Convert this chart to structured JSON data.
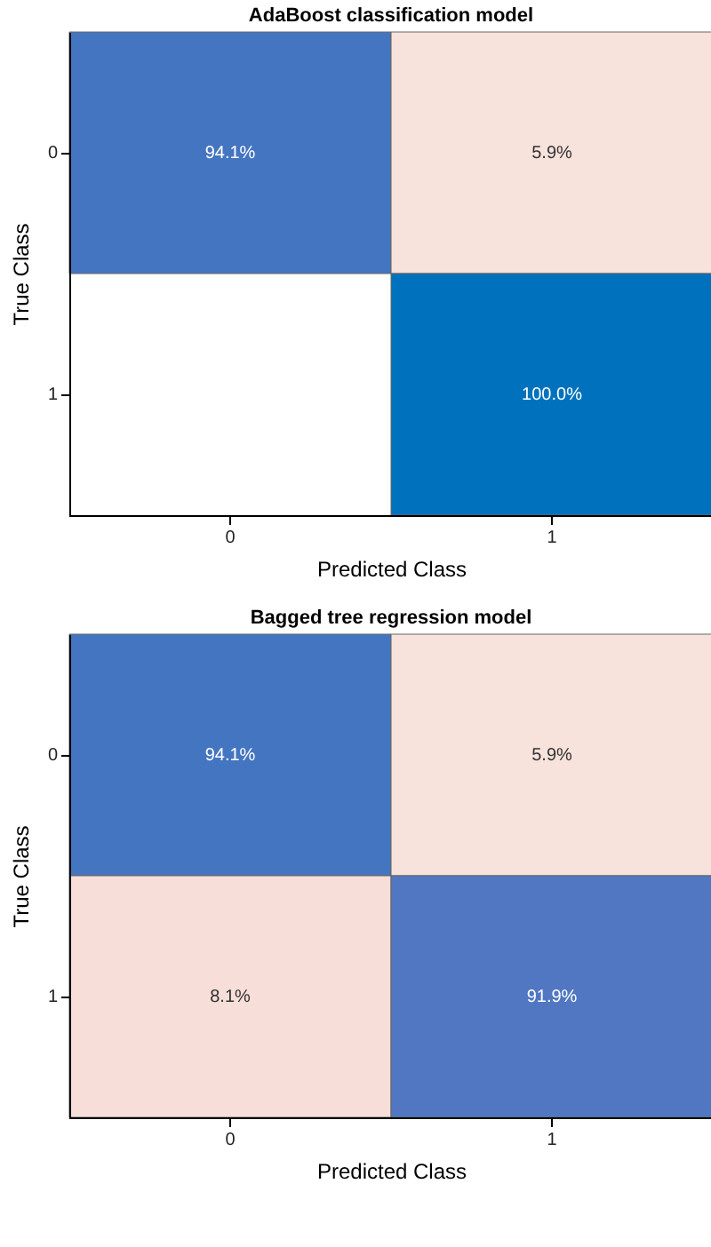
{
  "chart_data": [
    {
      "type": "heatmap",
      "title": "AdaBoost classification model",
      "xlabel": "Predicted Class",
      "ylabel": "True Class",
      "categories": [
        "0",
        "1"
      ],
      "y_categories": [
        "0",
        "1"
      ],
      "cells": [
        [
          94.1,
          5.9
        ],
        [
          null,
          100.0
        ]
      ],
      "cell_labels": [
        [
          "94.1%",
          "5.9%"
        ],
        [
          null,
          "100.0%"
        ]
      ]
    },
    {
      "type": "heatmap",
      "title": "Bagged tree regression model",
      "xlabel": "Predicted Class",
      "ylabel": "True Class",
      "categories": [
        "0",
        "1"
      ],
      "y_categories": [
        "0",
        "1"
      ],
      "cells": [
        [
          94.1,
          5.9
        ],
        [
          8.1,
          91.9
        ]
      ],
      "cell_labels": [
        [
          "94.1%",
          "5.9%"
        ],
        [
          "8.1%",
          "91.9%"
        ]
      ]
    }
  ]
}
